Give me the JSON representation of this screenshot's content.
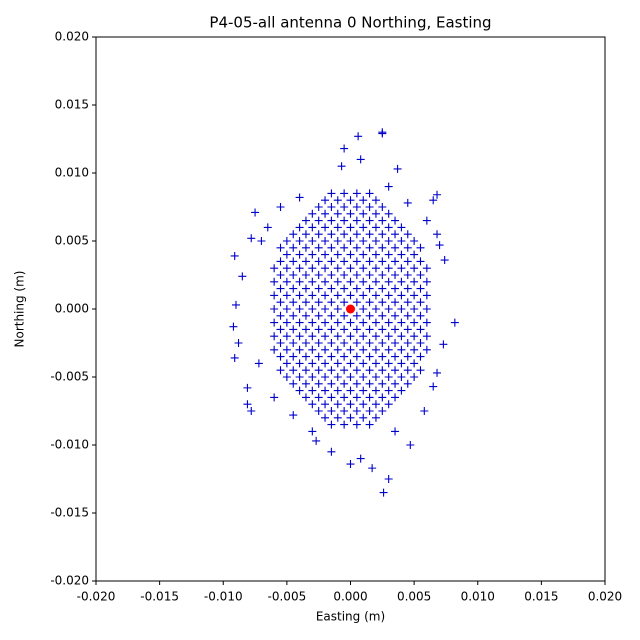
{
  "chart_data": {
    "type": "scatter",
    "title": "P4-05-all antenna 0 Northing, Easting",
    "x_label": "Easting (m)",
    "y_label": "Northing (m)",
    "xlim": [
      -0.02,
      0.02
    ],
    "ylim": [
      -0.02,
      0.02
    ],
    "xticks": [
      {
        "value": -0.02,
        "label": "-0.020"
      },
      -0.015,
      {
        "value": -0.01,
        "label": "-0.010"
      },
      -0.005,
      {
        "value": 0,
        "label": "0.000"
      },
      0.005,
      {
        "value": 0.01,
        "label": "0.010"
      },
      0.015,
      {
        "value": 0.02,
        "label": "0.020"
      }
    ],
    "yticks": [
      {
        "value": -0.02,
        "label": "-0.020"
      },
      -0.015,
      {
        "value": -0.01,
        "label": "-0.010"
      },
      -0.005,
      {
        "value": 0,
        "label": "0.000"
      },
      0.005,
      {
        "value": 0.01,
        "label": "0.010"
      },
      0.015,
      {
        "value": 0.02,
        "label": "0.020"
      }
    ],
    "series": [
      {
        "color": "#0000cc",
        "marker": "+",
        "x": [
          -0.002,
          -0.001,
          0,
          0.001,
          0.002,
          -0.003,
          -0.002,
          -0.001,
          0,
          0.001,
          0.002,
          0.003,
          -0.004,
          -0.003,
          -0.002,
          -0.001,
          0,
          0.001,
          0.002,
          0.003,
          0.004,
          -0.005,
          -0.004,
          -0.003,
          -0.002,
          -0.001,
          0,
          0.001,
          0.002,
          0.003,
          0.004,
          0.005,
          -0.005,
          -0.004,
          -0.003,
          -0.002,
          -0.001,
          0,
          0.001,
          0.002,
          0.003,
          0.004,
          0.005,
          -0.006,
          -0.005,
          -0.004,
          -0.003,
          -0.002,
          -0.001,
          0,
          0.001,
          0.002,
          0.003,
          0.004,
          0.005,
          0.006,
          -0.006,
          -0.005,
          -0.004,
          -0.003,
          -0.002,
          -0.001,
          0,
          0.001,
          0.002,
          0.003,
          0.004,
          0.005,
          0.006,
          -0.006,
          -0.005,
          -0.004,
          -0.003,
          -0.002,
          -0.001,
          0,
          0.001,
          0.002,
          0.003,
          0.004,
          0.005,
          0.006,
          -0.006,
          -0.005,
          -0.004,
          -0.003,
          -0.002,
          -0.001,
          0,
          0.001,
          0.002,
          0.003,
          0.004,
          0.005,
          0.006,
          -0.006,
          -0.005,
          -0.004,
          -0.003,
          -0.002,
          -0.001,
          0,
          0.001,
          0.002,
          0.003,
          0.004,
          0.005,
          0.006,
          -0.006,
          -0.005,
          -0.004,
          -0.003,
          -0.002,
          -0.001,
          0,
          0.001,
          0.002,
          0.003,
          0.004,
          0.005,
          0.006,
          -0.006,
          -0.005,
          -0.004,
          -0.003,
          -0.002,
          -0.001,
          0,
          0.001,
          0.002,
          0.003,
          0.004,
          0.005,
          0.006,
          -0.005,
          -0.004,
          -0.003,
          -0.002,
          -0.001,
          0,
          0.001,
          0.002,
          0.003,
          0.004,
          0.005,
          -0.005,
          -0.004,
          -0.003,
          -0.002,
          -0.001,
          0,
          0.001,
          0.002,
          0.003,
          0.004,
          0.005,
          -0.004,
          -0.003,
          -0.002,
          -0.001,
          0,
          0.001,
          0.002,
          0.003,
          0.004,
          -0.003,
          -0.002,
          -0.001,
          0,
          0.001,
          0.002,
          0.003,
          -0.002,
          -0.001,
          0,
          0.001,
          0.002,
          -0.0015,
          -0.0005,
          0.0005,
          0.0015,
          -0.0025,
          -0.0015,
          -0.0005,
          0.0005,
          0.0015,
          0.0025,
          -0.0035,
          -0.0025,
          -0.0015,
          -0.0005,
          0.0005,
          0.0015,
          0.0025,
          0.0035,
          -0.0045,
          -0.0035,
          -0.0025,
          -0.0015,
          -0.0005,
          0.0005,
          0.0015,
          0.0025,
          0.0035,
          0.0045,
          -0.0055,
          -0.0045,
          -0.0035,
          -0.0025,
          -0.0015,
          -0.0005,
          0.0005,
          0.0015,
          0.0025,
          0.0035,
          0.0045,
          0.0055,
          -0.0055,
          -0.0045,
          -0.0035,
          -0.0025,
          -0.0015,
          -0.0005,
          0.0005,
          0.0015,
          0.0025,
          0.0035,
          0.0045,
          0.0055,
          -0.0055,
          -0.0045,
          -0.0035,
          -0.0025,
          -0.0015,
          -0.0005,
          0.0005,
          0.0015,
          0.0025,
          0.0035,
          0.0045,
          0.0055,
          -0.0055,
          -0.0045,
          -0.0035,
          -0.0025,
          -0.0015,
          -0.0005,
          0.0005,
          0.0015,
          0.0025,
          0.0035,
          0.0045,
          0.0055,
          -0.0055,
          -0.0045,
          -0.0035,
          -0.0025,
          -0.0015,
          -0.0005,
          0.0005,
          0.0015,
          0.0025,
          0.0035,
          0.0045,
          0.0055,
          -0.0055,
          -0.0045,
          -0.0035,
          -0.0025,
          -0.0015,
          -0.0005,
          0.0005,
          0.0015,
          0.0025,
          0.0035,
          0.0045,
          0.0055,
          -0.0055,
          -0.0045,
          -0.0035,
          -0.0025,
          -0.0015,
          -0.0005,
          0.0005,
          0.0015,
          0.0025,
          0.0035,
          0.0045,
          0.0055,
          -0.0055,
          -0.0045,
          -0.0035,
          -0.0025,
          -0.0015,
          -0.0005,
          0.0005,
          0.0015,
          0.0025,
          0.0035,
          0.0045,
          0.0055,
          -0.0055,
          -0.0045,
          -0.0035,
          -0.0025,
          -0.0015,
          -0.0005,
          0.0005,
          0.0015,
          0.0025,
          0.0035,
          0.0045,
          0.0055,
          -0.0055,
          -0.0045,
          -0.0035,
          -0.0025,
          -0.0015,
          -0.0005,
          0.0005,
          0.0015,
          0.0025,
          0.0035,
          0.0045,
          0.0055,
          -0.0045,
          -0.0035,
          -0.0025,
          -0.0015,
          -0.0005,
          0.0005,
          0.0015,
          0.0025,
          0.0035,
          0.0045,
          -0.0035,
          -0.0025,
          -0.0015,
          -0.0005,
          0.0005,
          0.0015,
          0.0025,
          0.0035,
          -0.0025,
          -0.0015,
          -0.0005,
          0.0005,
          0.0015,
          0.0025,
          -0.0015,
          -0.0005,
          0.0005,
          0.0015,
          0.0025,
          0.0025,
          0.0006,
          -0.0005,
          0.0008,
          0.0037,
          -0.0007,
          0.0068,
          0.0065,
          -0.0091,
          -0.009,
          -0.0092,
          -0.0091,
          -0.0088,
          0.0082,
          0.0074,
          0.0073,
          0.0026,
          0.003,
          0.0008,
          0,
          0.0017,
          -0.0015,
          0.0047,
          -0.0027,
          -0.0078,
          -0.0081,
          -0.0081,
          -0.0075,
          -0.0078,
          -0.0085,
          0.0068,
          0.007,
          0.0068,
          0.0065,
          -0.0065,
          -0.007,
          -0.0072,
          -0.004,
          0.003,
          0.0035,
          -0.003,
          0.0045,
          -0.0045,
          0.006,
          -0.006,
          0.0058,
          -0.0055
        ],
        "values": [
          -0.008,
          -0.008,
          -0.008,
          -0.008,
          -0.008,
          -0.007,
          -0.007,
          -0.007,
          -0.007,
          -0.007,
          -0.007,
          -0.007,
          -0.006,
          -0.006,
          -0.006,
          -0.006,
          -0.006,
          -0.006,
          -0.006,
          -0.006,
          -0.006,
          -0.005,
          -0.005,
          -0.005,
          -0.005,
          -0.005,
          -0.005,
          -0.005,
          -0.005,
          -0.005,
          -0.005,
          -0.005,
          -0.004,
          -0.004,
          -0.004,
          -0.004,
          -0.004,
          -0.004,
          -0.004,
          -0.004,
          -0.004,
          -0.004,
          -0.004,
          -0.003,
          -0.003,
          -0.003,
          -0.003,
          -0.003,
          -0.003,
          -0.003,
          -0.003,
          -0.003,
          -0.003,
          -0.003,
          -0.003,
          -0.003,
          -0.002,
          -0.002,
          -0.002,
          -0.002,
          -0.002,
          -0.002,
          -0.002,
          -0.002,
          -0.002,
          -0.002,
          -0.002,
          -0.002,
          -0.002,
          -0.001,
          -0.001,
          -0.001,
          -0.001,
          -0.001,
          -0.001,
          -0.001,
          -0.001,
          -0.001,
          -0.001,
          -0.001,
          -0.001,
          -0.001,
          0,
          0,
          0,
          0,
          0,
          0,
          0,
          0,
          0,
          0,
          0,
          0,
          0,
          0.001,
          0.001,
          0.001,
          0.001,
          0.001,
          0.001,
          0.001,
          0.001,
          0.001,
          0.001,
          0.001,
          0.001,
          0.001,
          0.002,
          0.002,
          0.002,
          0.002,
          0.002,
          0.002,
          0.002,
          0.002,
          0.002,
          0.002,
          0.002,
          0.002,
          0.002,
          0.003,
          0.003,
          0.003,
          0.003,
          0.003,
          0.003,
          0.003,
          0.003,
          0.003,
          0.003,
          0.003,
          0.003,
          0.003,
          0.004,
          0.004,
          0.004,
          0.004,
          0.004,
          0.004,
          0.004,
          0.004,
          0.004,
          0.004,
          0.004,
          0.005,
          0.005,
          0.005,
          0.005,
          0.005,
          0.005,
          0.005,
          0.005,
          0.005,
          0.005,
          0.005,
          0.006,
          0.006,
          0.006,
          0.006,
          0.006,
          0.006,
          0.006,
          0.006,
          0.006,
          0.007,
          0.007,
          0.007,
          0.007,
          0.007,
          0.007,
          0.007,
          0.008,
          0.008,
          0.008,
          0.008,
          0.008,
          -0.0085,
          -0.0085,
          -0.0085,
          -0.0085,
          -0.0075,
          -0.0075,
          -0.0075,
          -0.0075,
          -0.0075,
          -0.0075,
          -0.0065,
          -0.0065,
          -0.0065,
          -0.0065,
          -0.0065,
          -0.0065,
          -0.0065,
          -0.0065,
          -0.0055,
          -0.0055,
          -0.0055,
          -0.0055,
          -0.0055,
          -0.0055,
          -0.0055,
          -0.0055,
          -0.0055,
          -0.0055,
          -0.0045,
          -0.0045,
          -0.0045,
          -0.0045,
          -0.0045,
          -0.0045,
          -0.0045,
          -0.0045,
          -0.0045,
          -0.0045,
          -0.0045,
          -0.0045,
          -0.0035,
          -0.0035,
          -0.0035,
          -0.0035,
          -0.0035,
          -0.0035,
          -0.0035,
          -0.0035,
          -0.0035,
          -0.0035,
          -0.0035,
          -0.0035,
          -0.0025,
          -0.0025,
          -0.0025,
          -0.0025,
          -0.0025,
          -0.0025,
          -0.0025,
          -0.0025,
          -0.0025,
          -0.0025,
          -0.0025,
          -0.0025,
          -0.0015,
          -0.0015,
          -0.0015,
          -0.0015,
          -0.0015,
          -0.0015,
          -0.0015,
          -0.0015,
          -0.0015,
          -0.0015,
          -0.0015,
          -0.0015,
          -0.0005,
          -0.0005,
          -0.0005,
          -0.0005,
          -0.0005,
          -0.0005,
          -0.0005,
          -0.0005,
          -0.0005,
          -0.0005,
          -0.0005,
          -0.0005,
          0.0005,
          0.0005,
          0.0005,
          0.0005,
          0.0005,
          0.0005,
          0.0005,
          0.0005,
          0.0005,
          0.0005,
          0.0005,
          0.0005,
          0.0015,
          0.0015,
          0.0015,
          0.0015,
          0.0015,
          0.0015,
          0.0015,
          0.0015,
          0.0015,
          0.0015,
          0.0015,
          0.0015,
          0.0025,
          0.0025,
          0.0025,
          0.0025,
          0.0025,
          0.0025,
          0.0025,
          0.0025,
          0.0025,
          0.0025,
          0.0025,
          0.0025,
          0.0035,
          0.0035,
          0.0035,
          0.0035,
          0.0035,
          0.0035,
          0.0035,
          0.0035,
          0.0035,
          0.0035,
          0.0035,
          0.0035,
          0.0045,
          0.0045,
          0.0045,
          0.0045,
          0.0045,
          0.0045,
          0.0045,
          0.0045,
          0.0045,
          0.0045,
          0.0045,
          0.0045,
          0.0055,
          0.0055,
          0.0055,
          0.0055,
          0.0055,
          0.0055,
          0.0055,
          0.0055,
          0.0055,
          0.0055,
          0.0065,
          0.0065,
          0.0065,
          0.0065,
          0.0065,
          0.0065,
          0.0065,
          0.0065,
          0.0075,
          0.0075,
          0.0075,
          0.0075,
          0.0075,
          0.0075,
          0.0085,
          0.0085,
          0.0085,
          0.0085,
          0.013,
          0.0129,
          0.0127,
          0.0118,
          0.011,
          0.0103,
          0.0105,
          0.0084,
          0.008,
          0.0039,
          0.0003,
          -0.0013,
          -0.0036,
          -0.0025,
          -0.001,
          0.0036,
          -0.0026,
          -0.0135,
          -0.0125,
          -0.011,
          -0.0114,
          -0.0117,
          -0.0105,
          -0.01,
          -0.0097,
          -0.0075,
          -0.007,
          -0.0058,
          0.0071,
          0.0052,
          0.0024,
          0.0055,
          0.0047,
          -0.0047,
          -0.0057,
          0.006,
          0.005,
          -0.004,
          0.0082,
          0.009,
          -0.009,
          -0.009,
          0.0078,
          -0.0078,
          0.0065,
          -0.0065,
          -0.0075,
          0.0075
        ]
      },
      {
        "color": "#ff0000",
        "marker": "o",
        "x": [
          0
        ],
        "values": [
          0
        ]
      }
    ]
  }
}
